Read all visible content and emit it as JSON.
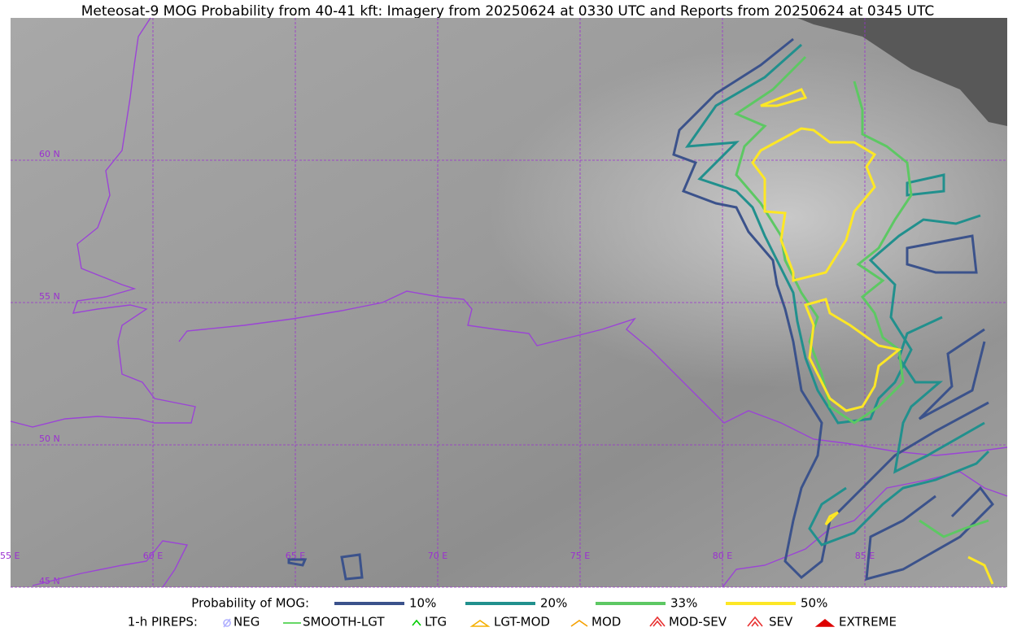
{
  "title": "Meteosat-9 MOG Probability from 40-41 kft: Imagery from 20250624 at 0330 UTC and Reports from 20250624 at 0345 UTC",
  "map": {
    "lat_labels": [
      "60 N",
      "55 N",
      "50 N",
      "45 N"
    ],
    "lon_labels": [
      "55 E",
      "60 E",
      "65 E",
      "70 E",
      "75 E",
      "80 E",
      "85 E"
    ]
  },
  "legend": {
    "mog_title": "Probability of MOG:",
    "mog_levels": [
      {
        "label": "10%",
        "color": "#3b528b"
      },
      {
        "label": "20%",
        "color": "#21908d"
      },
      {
        "label": "33%",
        "color": "#5dc863"
      },
      {
        "label": "50%",
        "color": "#fde725"
      }
    ],
    "pirep_title": "1-h PIREPS:",
    "pireps": [
      {
        "label": "NEG",
        "color": "#b0b0ff"
      },
      {
        "label": "SMOOTH-LGT",
        "color": "#33cc33"
      },
      {
        "label": "LTG",
        "color": "#00cc00"
      },
      {
        "label": "LGT-MOD",
        "color": "#f5b000"
      },
      {
        "label": "MOD",
        "color": "#f5a000"
      },
      {
        "label": "MOD-SEV",
        "color": "#e83030"
      },
      {
        "label": "SEV",
        "color": "#e83030"
      },
      {
        "label": "EXTREME",
        "color": "#dd0000"
      }
    ]
  }
}
